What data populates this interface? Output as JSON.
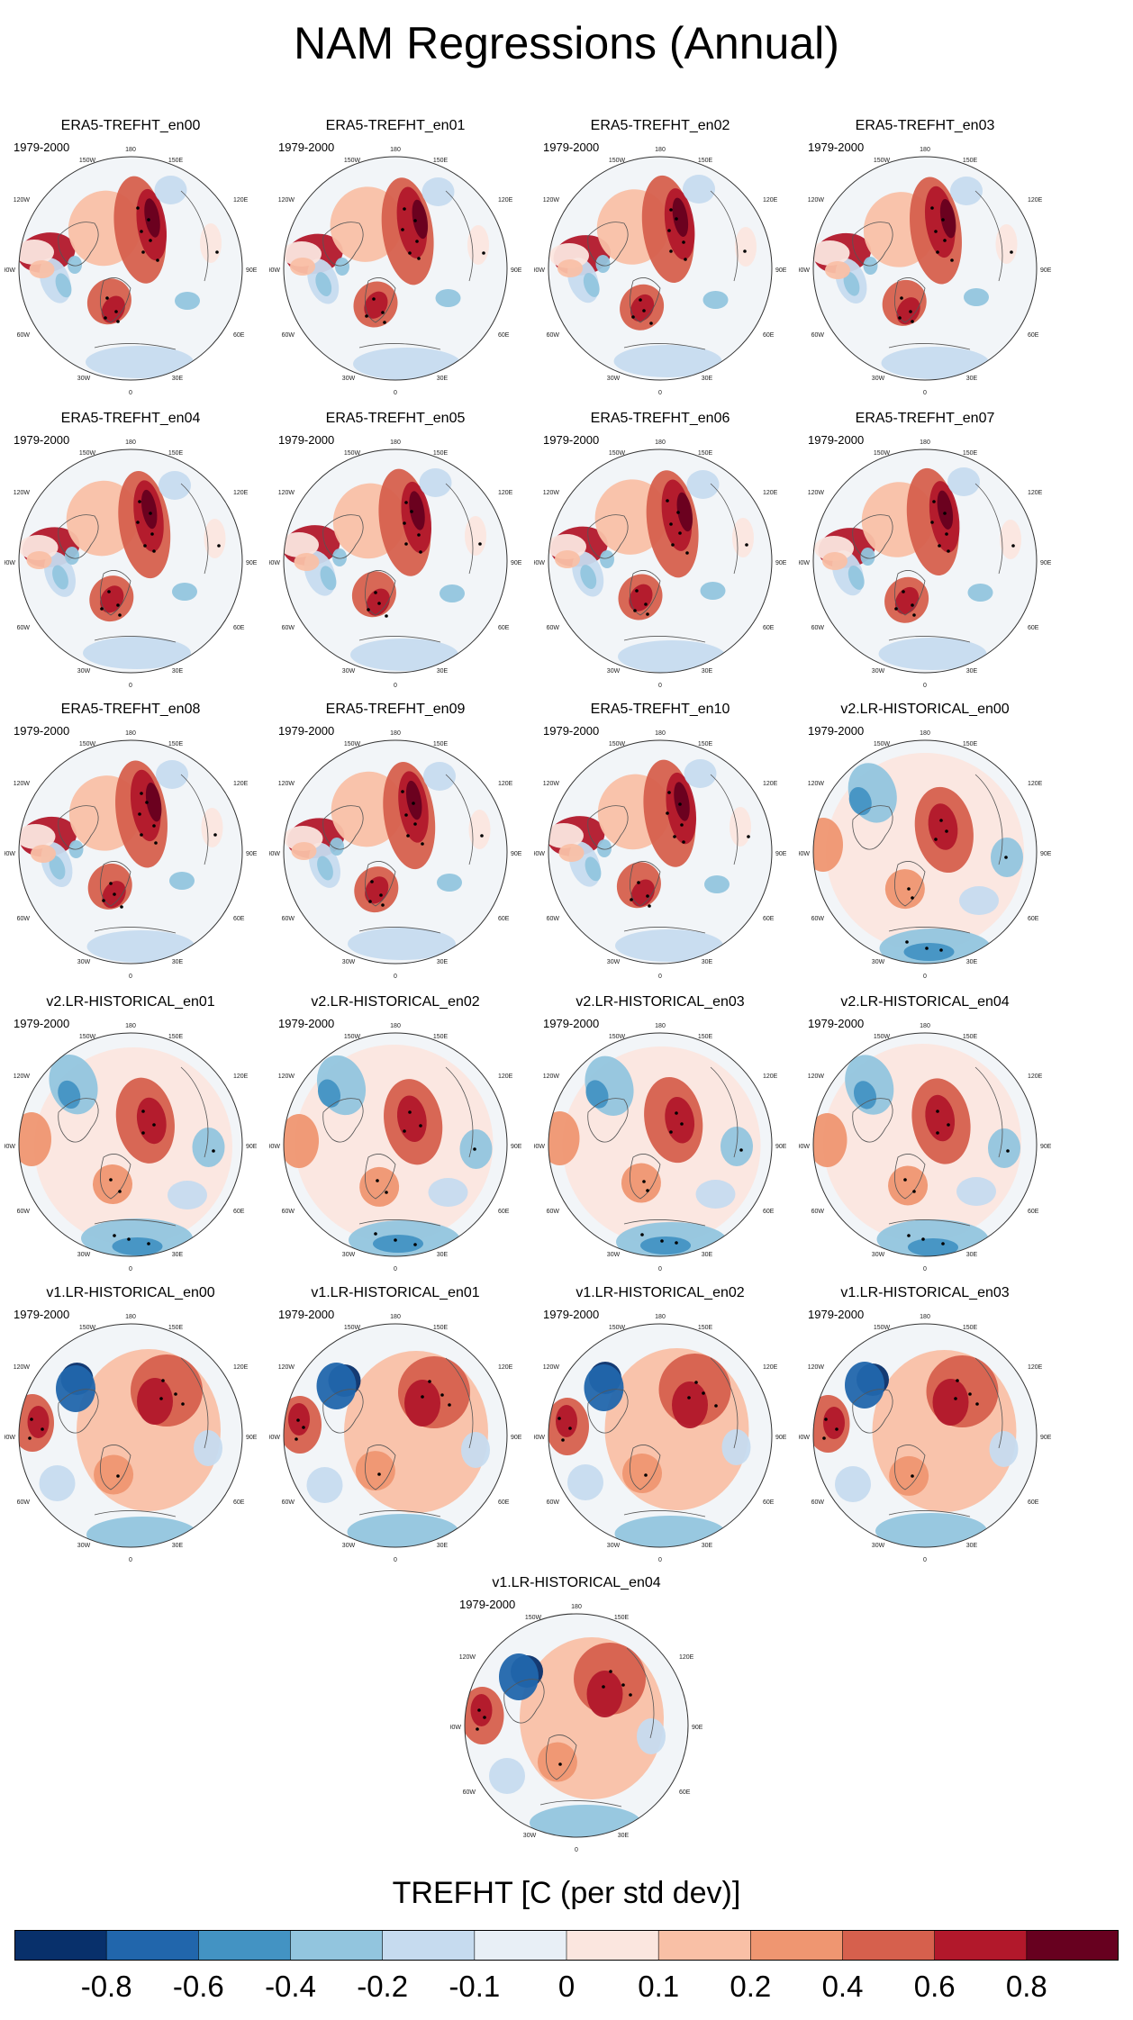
{
  "title": "NAM Regressions (Annual)",
  "period": "1979-2000",
  "map_labels": {
    "top": "180",
    "top_left": "150W",
    "top_right": "150E",
    "upper_left": "120W",
    "upper_right": "120E",
    "left": "90W",
    "right": "90E",
    "lower_left": "60W",
    "lower_right": "60E",
    "bottom_left": "30W",
    "bottom_right": "30E",
    "bottom": "0"
  },
  "panels": [
    {
      "title": "ERA5-TREFHT_en00",
      "group": "era5"
    },
    {
      "title": "ERA5-TREFHT_en01",
      "group": "era5"
    },
    {
      "title": "ERA5-TREFHT_en02",
      "group": "era5"
    },
    {
      "title": "ERA5-TREFHT_en03",
      "group": "era5"
    },
    {
      "title": "ERA5-TREFHT_en04",
      "group": "era5"
    },
    {
      "title": "ERA5-TREFHT_en05",
      "group": "era5"
    },
    {
      "title": "ERA5-TREFHT_en06",
      "group": "era5"
    },
    {
      "title": "ERA5-TREFHT_en07",
      "group": "era5"
    },
    {
      "title": "ERA5-TREFHT_en08",
      "group": "era5"
    },
    {
      "title": "ERA5-TREFHT_en09",
      "group": "era5"
    },
    {
      "title": "ERA5-TREFHT_en10",
      "group": "era5"
    },
    {
      "title": "v2.LR-HISTORICAL_en00",
      "group": "v2"
    },
    {
      "title": "v2.LR-HISTORICAL_en01",
      "group": "v2"
    },
    {
      "title": "v2.LR-HISTORICAL_en02",
      "group": "v2"
    },
    {
      "title": "v2.LR-HISTORICAL_en03",
      "group": "v2"
    },
    {
      "title": "v2.LR-HISTORICAL_en04",
      "group": "v2"
    },
    {
      "title": "v1.LR-HISTORICAL_en00",
      "group": "v1"
    },
    {
      "title": "v1.LR-HISTORICAL_en01",
      "group": "v1"
    },
    {
      "title": "v1.LR-HISTORICAL_en02",
      "group": "v1"
    },
    {
      "title": "v1.LR-HISTORICAL_en03",
      "group": "v1"
    },
    {
      "title": "v1.LR-HISTORICAL_en04",
      "group": "v1"
    }
  ],
  "colorbar": {
    "title": "TREFHT [C (per std dev)]",
    "colors": [
      "#08306b",
      "#2166ac",
      "#4393c3",
      "#92c5de",
      "#c6dbef",
      "#e8eff6",
      "#fbe6df",
      "#f9c0a6",
      "#ef9671",
      "#d6604d",
      "#b2182b",
      "#67001f"
    ],
    "labels": [
      "-0.8",
      "-0.6",
      "-0.4",
      "-0.2",
      "-0.1",
      "0",
      "0.1",
      "0.2",
      "0.4",
      "0.6",
      "0.8"
    ]
  }
}
